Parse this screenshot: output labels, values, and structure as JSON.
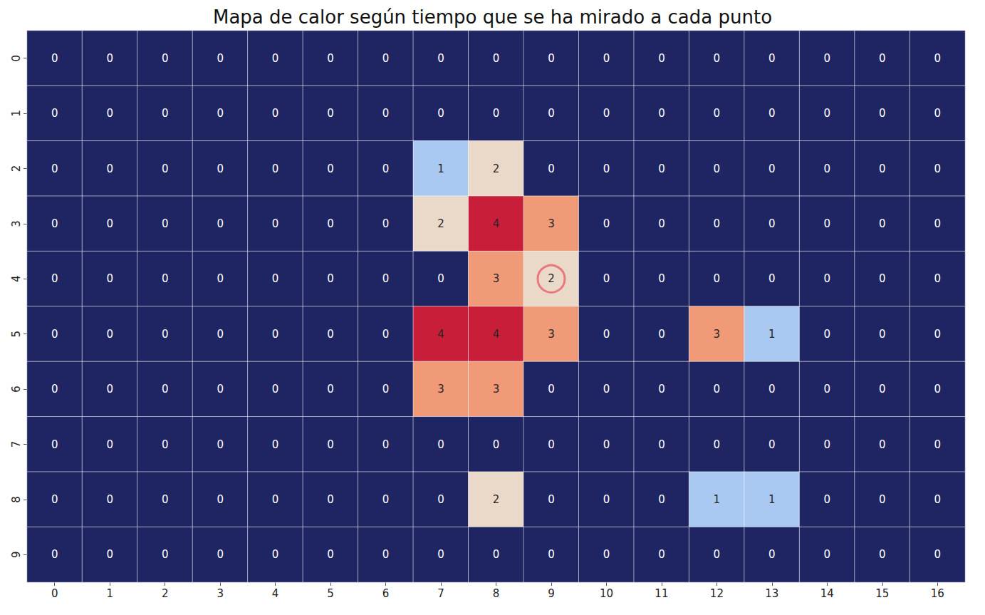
{
  "chart_data": {
    "type": "heatmap",
    "title": "Mapa de calor según tiempo que se ha mirado a cada punto",
    "x": [
      0,
      1,
      2,
      3,
      4,
      5,
      6,
      7,
      8,
      9,
      10,
      11,
      12,
      13,
      14,
      15,
      16
    ],
    "y": [
      0,
      1,
      2,
      3,
      4,
      5,
      6,
      7,
      8,
      9
    ],
    "values": [
      [
        0,
        0,
        0,
        0,
        0,
        0,
        0,
        0,
        0,
        0,
        0,
        0,
        0,
        0,
        0,
        0,
        0
      ],
      [
        0,
        0,
        0,
        0,
        0,
        0,
        0,
        0,
        0,
        0,
        0,
        0,
        0,
        0,
        0,
        0,
        0
      ],
      [
        0,
        0,
        0,
        0,
        0,
        0,
        0,
        1,
        2,
        0,
        0,
        0,
        0,
        0,
        0,
        0,
        0
      ],
      [
        0,
        0,
        0,
        0,
        0,
        0,
        0,
        2,
        4,
        3,
        0,
        0,
        0,
        0,
        0,
        0,
        0
      ],
      [
        0,
        0,
        0,
        0,
        0,
        0,
        0,
        0,
        3,
        2,
        0,
        0,
        0,
        0,
        0,
        0,
        0
      ],
      [
        0,
        0,
        0,
        0,
        0,
        0,
        0,
        4,
        4,
        3,
        0,
        0,
        3,
        1,
        0,
        0,
        0
      ],
      [
        0,
        0,
        0,
        0,
        0,
        0,
        0,
        3,
        3,
        0,
        0,
        0,
        0,
        0,
        0,
        0,
        0
      ],
      [
        0,
        0,
        0,
        0,
        0,
        0,
        0,
        0,
        0,
        0,
        0,
        0,
        0,
        0,
        0,
        0,
        0
      ],
      [
        0,
        0,
        0,
        0,
        0,
        0,
        0,
        0,
        2,
        0,
        0,
        0,
        1,
        1,
        0,
        0,
        0
      ],
      [
        0,
        0,
        0,
        0,
        0,
        0,
        0,
        0,
        0,
        0,
        0,
        0,
        0,
        0,
        0,
        0,
        0
      ]
    ],
    "zlim": [
      0,
      4
    ],
    "current_point": {
      "x": 9,
      "y": 4
    },
    "data_labels": true
  }
}
